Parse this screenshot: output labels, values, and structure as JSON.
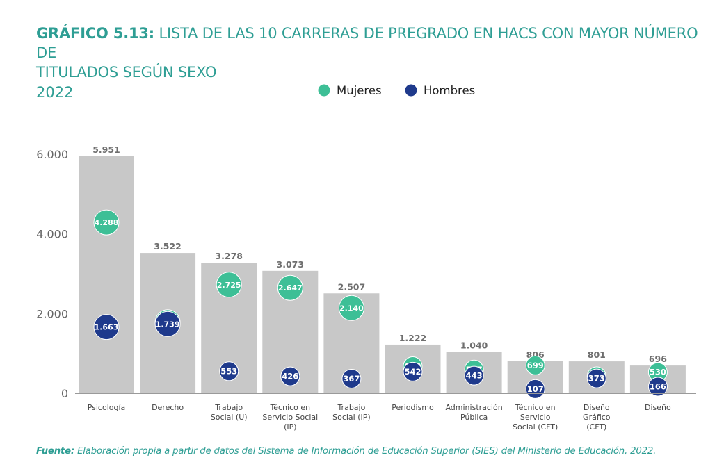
{
  "title": {
    "prefix": "GRÁFICO 5.13:",
    "line1": "LISTA DE LAS 10 CARRERAS DE PREGRADO EN HACS CON MAYOR NÚMERO DE",
    "line2": "TITULADOS SEGÚN SEXO",
    "year": "2022"
  },
  "footer": {
    "label": "Fuente:",
    "text": "Elaboración propia a partir de datos del Sistema de Información de Educación Superior (SIES) del Ministerio de Educación, 2022."
  },
  "colors": {
    "accent": "#2e9e94",
    "total_bar": "#c8c8c8",
    "mujeres": "#3dbf96",
    "hombres": "#1f3a8c",
    "axis_text": "#666666",
    "total_label": "#6e6e6e"
  },
  "chart_data": {
    "type": "bar",
    "categories": [
      [
        "Psicología"
      ],
      [
        "Derecho"
      ],
      [
        "Trabajo",
        "Social (U)"
      ],
      [
        "Técnico en",
        "Servicio Social",
        "(IP)"
      ],
      [
        "Trabajo",
        "Social (IP)"
      ],
      [
        "Periodismo"
      ],
      [
        "Administración",
        "Pública"
      ],
      [
        "Técnico en",
        "Servicio",
        "Social (CFT)"
      ],
      [
        "Diseño",
        "Gráfico",
        "(CFT)"
      ],
      [
        "Diseño"
      ]
    ],
    "totals": [
      5951,
      3522,
      3278,
      3073,
      2507,
      1222,
      1040,
      806,
      801,
      696
    ],
    "total_labels": [
      "5.951",
      "3.522",
      "3.278",
      "3.073",
      "2.507",
      "1.222",
      "1.040",
      "806",
      "801",
      "696"
    ],
    "series": [
      {
        "name": "Mujeres",
        "values": [
          4288,
          1783,
          2725,
          2647,
          2140,
          680,
          597,
          699,
          428,
          530
        ],
        "labels": [
          "4.288",
          "1.783",
          "2.725",
          "2.647",
          "2.140",
          "680",
          "597",
          "699",
          "428",
          "530"
        ]
      },
      {
        "name": "Hombres",
        "values": [
          1663,
          1739,
          553,
          426,
          367,
          542,
          443,
          107,
          373,
          166
        ],
        "labels": [
          "1.663",
          "1.739",
          "553",
          "426",
          "367",
          "542",
          "443",
          "107",
          "373",
          "166"
        ]
      }
    ],
    "yticks": [
      0,
      2000,
      4000,
      6000
    ],
    "ytick_labels": [
      "0",
      "2.000",
      "4.000",
      "6.000"
    ],
    "ylim": [
      0,
      6000
    ],
    "grid": false,
    "legend_position": "top-center"
  }
}
